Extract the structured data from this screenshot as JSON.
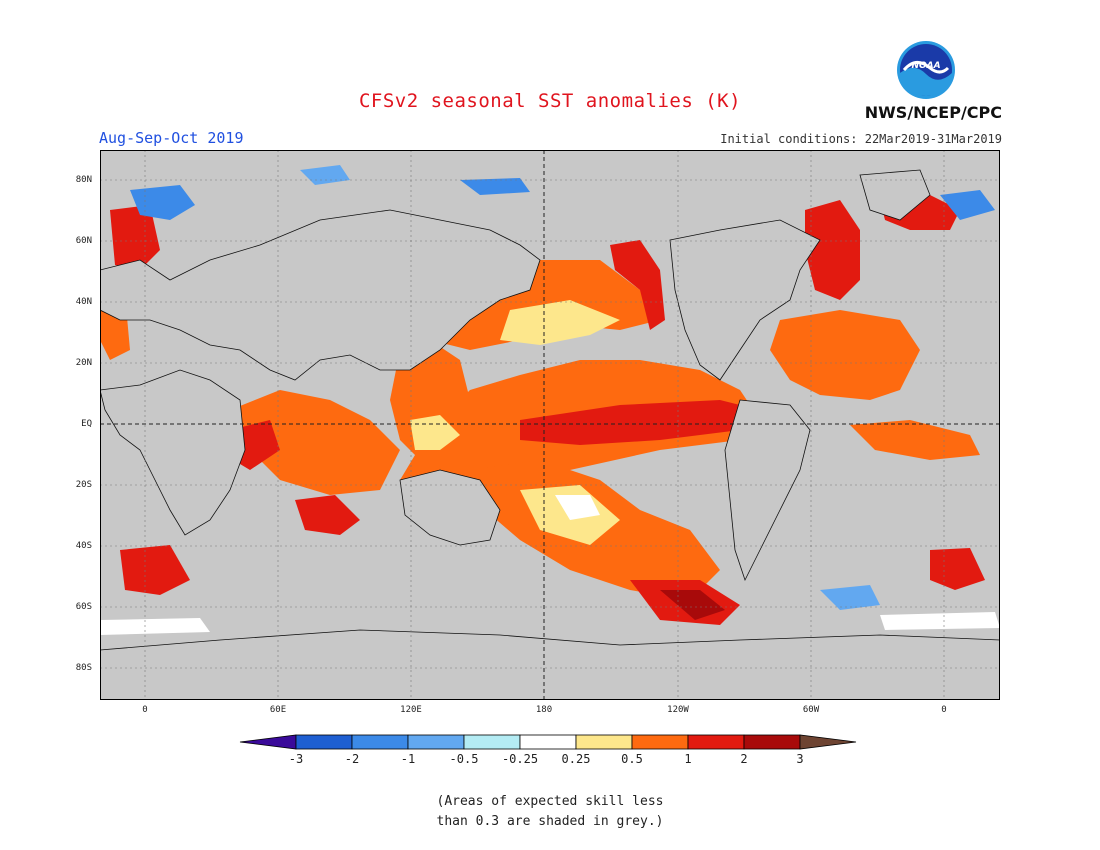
{
  "title": "CFSv2 seasonal SST anomalies (K)",
  "season": "Aug-Sep-Oct 2019",
  "organization": "NWS/NCEP/CPC",
  "logo_text": "NOAA",
  "initial_conditions": "Initial conditions: 22Mar2019-31Mar2019",
  "lat_labels": [
    "80N",
    "60N",
    "40N",
    "20N",
    "EQ",
    "20S",
    "40S",
    "60S",
    "80S"
  ],
  "lon_labels": [
    "0",
    "60E",
    "120E",
    "180",
    "120W",
    "60W",
    "0"
  ],
  "colorbar": {
    "ticks": [
      "-3",
      "-2",
      "-1",
      "-0.5",
      "-0.25",
      "0.25",
      "0.5",
      "1",
      "2",
      "3"
    ],
    "colors": [
      "#3a0a9a",
      "#1e5fd2",
      "#3c8ae8",
      "#62a8f0",
      "#b4ecf4",
      "#ffffff",
      "#fde78c",
      "#fe6a10",
      "#e21a10",
      "#a80a0a",
      "#6e4432"
    ]
  },
  "note_lines": [
    "(Areas of expected skill less",
    "than 0.3 are shaded in grey.)"
  ],
  "colors": {
    "grey_mask": "#c8c8c8",
    "title": "#e0141e",
    "season": "#2050e0"
  }
}
